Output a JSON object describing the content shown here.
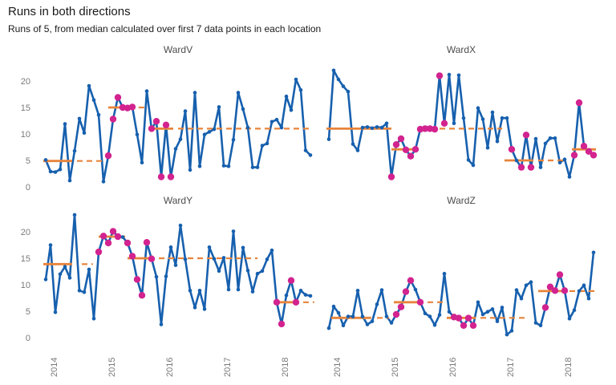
{
  "title": "Runs in both directions",
  "subtitle": "Runs of 5, from median calculated over first 7 data points in each location",
  "colors": {
    "line": "#1760ae",
    "run_point": "#d2238f",
    "median": "#e8843b",
    "title_text": "#1a1a1a",
    "facet_text": "#4d4d4d",
    "axis_text": "#7a7a7a"
  },
  "y_axis": {
    "ticks": [
      0,
      5,
      10,
      15,
      20
    ]
  },
  "x_axis": {
    "tick_labels": [
      "2014",
      "2015",
      "2016",
      "2017",
      "2018"
    ],
    "tick_months": [
      2,
      14,
      26,
      38,
      50
    ]
  },
  "chart_data": [
    {
      "type": "line",
      "title": "WardV",
      "x_unit": "month_index",
      "ylim": [
        0,
        24
      ],
      "values": [
        5.4,
        3.2,
        3.1,
        3.6,
        12.2,
        1.5,
        7.1,
        13.2,
        10.5,
        19.4,
        16.7,
        13.9,
        1.3,
        6.2,
        13.1,
        17.2,
        15.3,
        15.2,
        15.4,
        10.2,
        4.9,
        18.4,
        11.3,
        12.7,
        2.2,
        12.0,
        2.2,
        7.5,
        9.3,
        14.6,
        3.5,
        18.1,
        4.2,
        10.2,
        10.7,
        11.2,
        15.4,
        4.3,
        4.2,
        9.2,
        18.1,
        15.0,
        11.5,
        4.0,
        4.0,
        8.1,
        8.5,
        12.6,
        13.0,
        11.5,
        17.4,
        14.8,
        20.6,
        18.6,
        7.2,
        6.3
      ],
      "run_points": [
        13,
        14,
        15,
        16,
        17,
        18,
        22,
        23,
        24,
        25,
        26
      ],
      "median_segments": [
        {
          "value": 5.2,
          "from": -0.5,
          "to": 5.5,
          "style": "solid"
        },
        {
          "value": 5.2,
          "from": 6.5,
          "to": 12.5,
          "style": "dashed"
        },
        {
          "value": 15.3,
          "from": 13.0,
          "to": 18.5,
          "style": "solid"
        },
        {
          "value": 15.3,
          "from": 19.3,
          "to": 21.0,
          "style": "dashed"
        },
        {
          "value": 11.3,
          "from": 21.5,
          "to": 26.5,
          "style": "solid"
        },
        {
          "value": 11.3,
          "from": 27.5,
          "to": 55.5,
          "style": "dashed"
        }
      ]
    },
    {
      "type": "line",
      "title": "WardX",
      "x_unit": "month_index",
      "ylim": [
        0,
        24
      ],
      "values": [
        9.3,
        22.3,
        20.6,
        19.3,
        18.3,
        8.4,
        7.2,
        11.5,
        11.6,
        11.4,
        11.6,
        11.5,
        12.3,
        2.2,
        8.3,
        9.4,
        7.3,
        6.1,
        7.4,
        11.2,
        11.3,
        11.3,
        11.2,
        21.3,
        12.3,
        21.5,
        12.3,
        21.4,
        13.3,
        5.4,
        4.4,
        15.2,
        13.1,
        7.7,
        14.4,
        8.9,
        13.3,
        13.3,
        7.4,
        5.3,
        4.0,
        10.1,
        4.0,
        9.4,
        4.0,
        8.5,
        9.5,
        9.5,
        4.9,
        5.5,
        2.2,
        6.3,
        16.2,
        8.0,
        7.0,
        6.3
      ],
      "run_points": [
        13,
        14,
        15,
        16,
        17,
        18,
        19,
        20,
        21,
        22,
        23,
        24,
        38,
        40,
        41,
        42,
        51,
        52,
        53,
        54,
        55
      ],
      "median_segments": [
        {
          "value": 11.3,
          "from": -0.5,
          "to": 13.0,
          "style": "solid"
        },
        {
          "value": 7.4,
          "from": 13.0,
          "to": 18.5,
          "style": "solid"
        },
        {
          "value": 11.3,
          "from": 19.0,
          "to": 36.0,
          "style": "dashed"
        },
        {
          "value": 5.3,
          "from": 36.5,
          "to": 42.5,
          "style": "solid"
        },
        {
          "value": 5.3,
          "from": 43.5,
          "to": 49.0,
          "style": "dashed"
        },
        {
          "value": 7.4,
          "from": 50.5,
          "to": 55.5,
          "style": "solid"
        }
      ]
    },
    {
      "type": "line",
      "title": "WardY",
      "x_unit": "month_index",
      "ylim": [
        0,
        24
      ],
      "values": [
        11.3,
        17.8,
        5.1,
        12.3,
        13.7,
        11.6,
        23.5,
        9.2,
        8.9,
        13.2,
        3.9,
        16.5,
        19.5,
        18.2,
        20.4,
        19.4,
        19.3,
        18.2,
        15.7,
        11.3,
        8.3,
        18.3,
        15.2,
        11.8,
        2.8,
        11.9,
        17.4,
        14.0,
        21.5,
        15.1,
        9.2,
        6.0,
        9.2,
        5.7,
        17.4,
        15.2,
        12.9,
        15.4,
        9.4,
        20.4,
        9.4,
        17.3,
        13.0,
        9.0,
        12.4,
        12.9,
        15.1,
        16.8,
        7.0,
        2.9,
        8.3,
        11.1,
        7.0,
        9.2,
        8.4,
        8.2
      ],
      "run_points": [
        11,
        12,
        13,
        14,
        15,
        17,
        18,
        19,
        20,
        21,
        22,
        48,
        49,
        51,
        52
      ],
      "median_segments": [
        {
          "value": 14.2,
          "from": -0.5,
          "to": 5.5,
          "style": "solid"
        },
        {
          "value": 14.2,
          "from": 7.5,
          "to": 9.8,
          "style": "dashed"
        },
        {
          "value": 19.4,
          "from": 11.0,
          "to": 16.5,
          "style": "solid"
        },
        {
          "value": 15.3,
          "from": 17.0,
          "to": 22.5,
          "style": "solid"
        },
        {
          "value": 15.3,
          "from": 23.5,
          "to": 44.0,
          "style": "dashed"
        },
        {
          "value": 7.0,
          "from": 47.5,
          "to": 52.5,
          "style": "solid"
        },
        {
          "value": 7.0,
          "from": 53.5,
          "to": 55.8,
          "style": "dashed"
        }
      ]
    },
    {
      "type": "line",
      "title": "WardZ",
      "x_unit": "month_index",
      "ylim": [
        0,
        24
      ],
      "values": [
        2.1,
        6.2,
        5.0,
        2.6,
        4.3,
        4.3,
        9.2,
        4.3,
        2.8,
        3.4,
        6.6,
        9.3,
        4.3,
        3.1,
        4.7,
        6.1,
        9.0,
        11.1,
        9.4,
        7.0,
        4.9,
        4.3,
        2.7,
        4.6,
        12.4,
        5.2,
        4.2,
        4.0,
        2.6,
        4.0,
        2.6,
        7.0,
        4.7,
        5.2,
        5.7,
        3.4,
        6.0,
        0.9,
        1.6,
        9.3,
        7.7,
        10.2,
        10.8,
        3.1,
        2.6,
        6.0,
        9.9,
        9.2,
        12.2,
        9.2,
        3.9,
        5.5,
        9.1,
        10.2,
        7.7,
        16.4
      ],
      "run_points": [
        14,
        15,
        16,
        17,
        19,
        26,
        27,
        28,
        29,
        30,
        45,
        46,
        47,
        48,
        49
      ],
      "median_segments": [
        {
          "value": 4.05,
          "from": 0.5,
          "to": 8.8,
          "style": "solid"
        },
        {
          "value": 4.05,
          "from": 10.0,
          "to": 12.5,
          "style": "dashed"
        },
        {
          "value": 7.0,
          "from": 13.5,
          "to": 19.0,
          "style": "solid"
        },
        {
          "value": 7.0,
          "from": 20.5,
          "to": 24.0,
          "style": "dashed"
        },
        {
          "value": 4.05,
          "from": 24.5,
          "to": 30.5,
          "style": "solid"
        },
        {
          "value": 4.05,
          "from": 31.5,
          "to": 41.5,
          "style": "dashed"
        },
        {
          "value": 9.1,
          "from": 43.5,
          "to": 49.0,
          "style": "solid"
        },
        {
          "value": 9.1,
          "from": 50.0,
          "to": 55.5,
          "style": "dashed"
        }
      ]
    }
  ]
}
